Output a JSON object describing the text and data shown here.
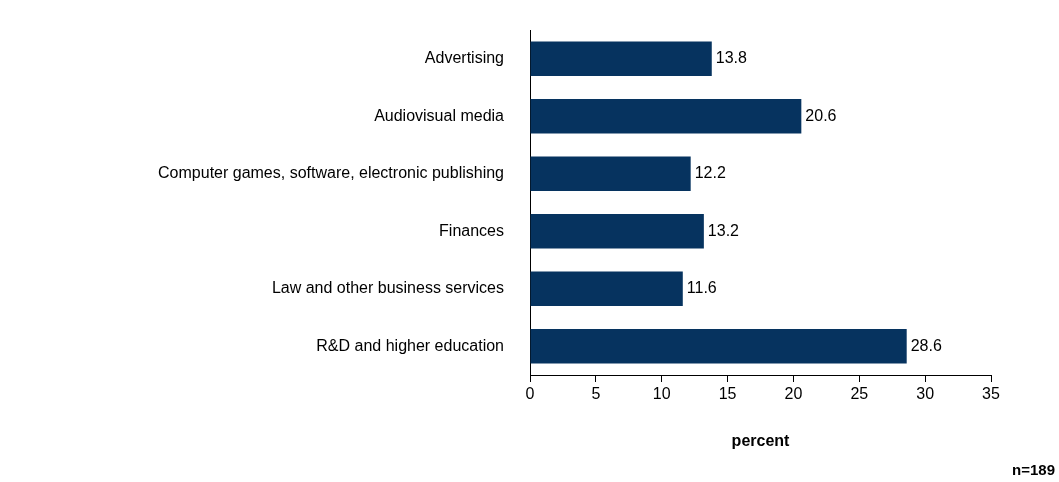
{
  "chart_data": {
    "type": "bar",
    "orientation": "horizontal",
    "categories": [
      "Advertising",
      "Audiovisual media",
      "Computer games, software, electronic publishing",
      "Finances",
      "Law and other business services",
      "R&D and higher education"
    ],
    "values": [
      13.8,
      20.6,
      12.2,
      13.2,
      11.6,
      28.6
    ],
    "color": "#06335f",
    "xlim": [
      0,
      35
    ],
    "xticks": [
      0,
      5,
      10,
      15,
      20,
      25,
      30,
      35
    ],
    "xlabel": "percent",
    "grid": false,
    "legend": false,
    "data_labels": true,
    "annotations": [
      "n=189"
    ]
  }
}
